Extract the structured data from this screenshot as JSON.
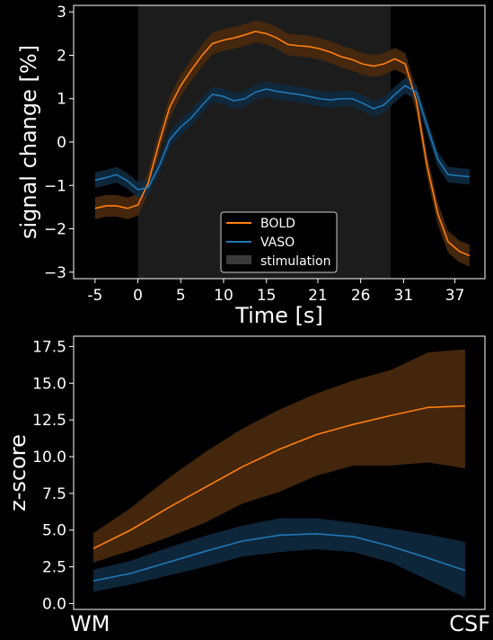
{
  "colors": {
    "bold": "#ff7f0e",
    "bold_band": "#4a2a0d",
    "vaso": "#1f77b4",
    "vaso_band": "#0f2a40",
    "stimulation": "#1c1c1c",
    "background": "#000000",
    "axes": "#ffffff"
  },
  "chart_data": [
    {
      "type": "line",
      "xlabel": "Time [s]",
      "ylabel": "signal change [%]",
      "xlim": [
        -7.5,
        40.5
      ],
      "ylim": [
        -3.15,
        3.15
      ],
      "xticks": [
        -5,
        0,
        5,
        10,
        15,
        21,
        26,
        31,
        37
      ],
      "xtick_labels": [
        "-5",
        "0",
        "5",
        "10",
        "15",
        "21",
        "26",
        "31",
        "37"
      ],
      "yticks": [
        -3,
        -2,
        -1,
        0,
        1,
        2,
        3
      ],
      "ytick_labels": [
        "−3",
        "−2",
        "−1",
        "0",
        "1",
        "2",
        "3"
      ],
      "grid": false,
      "legend_position": "bottom-center",
      "stimulation": {
        "name": "stimulation",
        "start": 0,
        "end": 29.5
      },
      "x": [
        -5,
        -3.7,
        -2.5,
        -1.2,
        0,
        1.2,
        2.5,
        3.7,
        5,
        6.2,
        7.5,
        8.7,
        10,
        11.2,
        12.5,
        13.7,
        15,
        16.2,
        17.5,
        18.7,
        20,
        21.2,
        22.5,
        23.7,
        25,
        26.2,
        27.5,
        28.7,
        30,
        31.2,
        32.5,
        33.7,
        35,
        36.2,
        37.5,
        38.7
      ],
      "series": [
        {
          "name": "BOLD",
          "color_key": "bold",
          "values": [
            -1.53,
            -1.47,
            -1.47,
            -1.53,
            -1.45,
            -0.95,
            0.0,
            0.8,
            1.3,
            1.65,
            2.0,
            2.27,
            2.35,
            2.4,
            2.47,
            2.55,
            2.5,
            2.4,
            2.25,
            2.22,
            2.2,
            2.15,
            2.07,
            1.97,
            1.9,
            1.8,
            1.75,
            1.8,
            1.92,
            1.8,
            0.95,
            -0.5,
            -1.65,
            -2.3,
            -2.52,
            -2.62
          ],
          "band": 0.25
        },
        {
          "name": "VASO",
          "color_key": "vaso",
          "values": [
            -0.88,
            -0.82,
            -0.75,
            -0.9,
            -1.1,
            -1.05,
            -0.55,
            0.05,
            0.35,
            0.55,
            0.85,
            1.1,
            1.05,
            0.95,
            1.0,
            1.15,
            1.22,
            1.17,
            1.13,
            1.1,
            1.05,
            1.0,
            0.97,
            1.0,
            1.0,
            0.9,
            0.77,
            0.85,
            1.1,
            1.3,
            1.15,
            0.4,
            -0.4,
            -0.75,
            -0.78,
            -0.8
          ],
          "band": 0.18
        }
      ]
    },
    {
      "type": "line",
      "xlabel": "",
      "ylabel": "z-score",
      "ylim": [
        -0.4,
        18.2
      ],
      "yticks": [
        0,
        2.5,
        5,
        7.5,
        10,
        12.5,
        15,
        17.5
      ],
      "ytick_labels": [
        "0.0",
        "2.5",
        "5.0",
        "7.5",
        "10.0",
        "12.5",
        "15.0",
        "17.5"
      ],
      "x_end_labels": [
        "WM",
        "CSF"
      ],
      "grid": false,
      "x": [
        0,
        0.1,
        0.2,
        0.3,
        0.4,
        0.5,
        0.6,
        0.7,
        0.8,
        0.9,
        1.0
      ],
      "series": [
        {
          "name": "BOLD",
          "color_key": "bold",
          "values": [
            3.75,
            5.0,
            6.5,
            7.9,
            9.3,
            10.5,
            11.5,
            12.2,
            12.8,
            13.35,
            13.45
          ],
          "lower": [
            2.8,
            3.6,
            4.5,
            5.5,
            6.8,
            7.6,
            8.7,
            9.4,
            9.4,
            9.6,
            9.2
          ],
          "upper": [
            4.8,
            6.5,
            8.5,
            10.3,
            11.9,
            13.2,
            14.3,
            15.2,
            15.9,
            17.1,
            17.3
          ]
        },
        {
          "name": "VASO",
          "color_key": "vaso",
          "values": [
            1.55,
            2.05,
            2.8,
            3.55,
            4.25,
            4.65,
            4.75,
            4.55,
            3.9,
            3.1,
            2.25
          ],
          "lower": [
            0.8,
            1.3,
            1.9,
            2.5,
            3.2,
            3.5,
            3.7,
            3.5,
            2.8,
            1.6,
            0.4
          ],
          "upper": [
            2.3,
            2.9,
            3.8,
            4.6,
            5.3,
            5.8,
            5.8,
            5.5,
            5.1,
            4.7,
            4.2
          ]
        }
      ]
    }
  ]
}
